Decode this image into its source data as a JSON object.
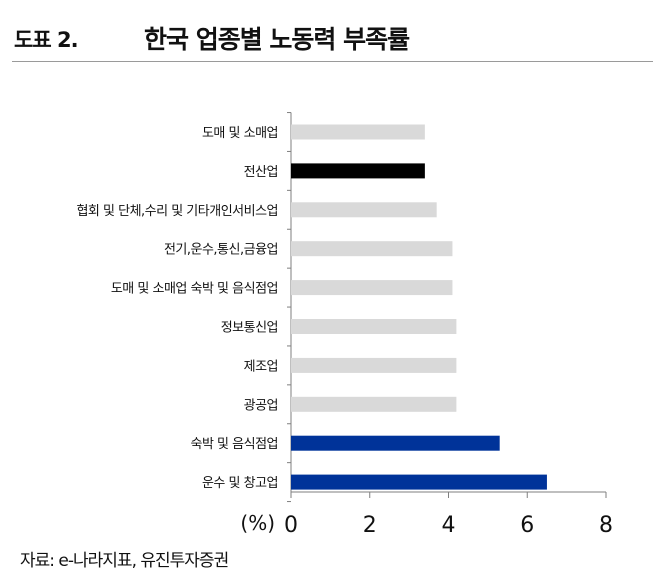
{
  "header": {
    "figure_label": "도표 2.",
    "title": "한국 업종별 노동력 부족률"
  },
  "source": "자료: e-나라지표, 유진투자증권",
  "colors": {
    "default_bar": "#d9d9d9",
    "highlight_black": "#000000",
    "highlight_blue": "#003399",
    "axis": "#7f7f7f"
  },
  "chart_data": {
    "type": "bar",
    "orientation": "horizontal",
    "title": "한국 업종별 노동력 부족률",
    "xlabel": "",
    "ylabel": "",
    "unit_label": "(%)",
    "xlim": [
      0,
      8
    ],
    "xticks": [
      0,
      2,
      4,
      6,
      8
    ],
    "grid": false,
    "legend": "none",
    "categories": [
      "도매 및 소매업",
      "전산업",
      "협회 및 단체,수리 및 기타개인서비스업",
      "전기,운수,통신,금융업",
      "도매 및 소매업 숙박 및 음식점업",
      "정보통신업",
      "제조업",
      "광공업",
      "숙박 및 음식점업",
      "운수 및 창고업"
    ],
    "values": [
      3.4,
      3.4,
      3.7,
      4.1,
      4.1,
      4.2,
      4.2,
      4.2,
      5.3,
      6.5
    ],
    "bar_colors": [
      "default",
      "black",
      "default",
      "default",
      "default",
      "default",
      "default",
      "default",
      "blue",
      "blue"
    ]
  }
}
